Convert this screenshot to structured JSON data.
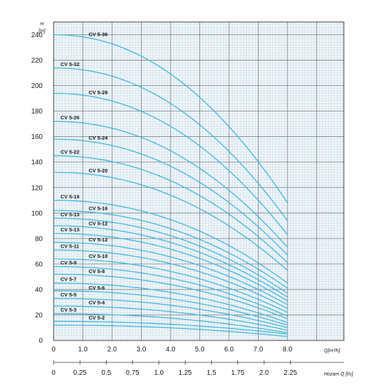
{
  "chart_data": {
    "type": "line",
    "title": "",
    "ylabel": "H",
    "ylabel_unit": "[m]",
    "xlabel": "Q[m³/h]",
    "x2label": "Hozam Q [l/s]",
    "xlim": [
      0,
      10.5
    ],
    "ylim": [
      0,
      250
    ],
    "x_ticks": [
      "0",
      "1.0",
      "2.0",
      "3.0",
      "4.0",
      "5.0",
      "6.0",
      "7.0",
      "8.0"
    ],
    "x2_ticks": [
      "0",
      "0.25",
      "0.5",
      "0.75",
      "1.0",
      "1.25",
      "1.5",
      "1.75",
      "2.0",
      "2.25"
    ],
    "y_ticks": [
      "0",
      "20",
      "40",
      "60",
      "80",
      "100",
      "120",
      "140",
      "160",
      "180",
      "200",
      "220",
      "240"
    ],
    "grid": true,
    "line_color": "#3bb4dc",
    "series": [
      {
        "label_side": "left",
        "h0": 12,
        "h8": 3
      },
      {
        "name": "CV 5-2",
        "label_side": "right",
        "h0": 15,
        "h8": 5
      },
      {
        "name": "CV 5-3",
        "label_side": "left",
        "h0": 21,
        "h8": 6
      },
      {
        "name": "CV 5-4",
        "label_side": "right",
        "h0": 27,
        "h8": 8
      },
      {
        "name": "CV 5-5",
        "label_side": "left",
        "h0": 33,
        "h8": 10
      },
      {
        "name": "CV 5-6",
        "label_side": "right",
        "h0": 39,
        "h8": 12
      },
      {
        "name": "CV 5-7",
        "label_side": "left",
        "h0": 45,
        "h8": 14
      },
      {
        "name": "CV 5-8",
        "label_side": "right",
        "h0": 52,
        "h8": 17
      },
      {
        "name": "CV 5-9",
        "label_side": "left",
        "h0": 58,
        "h8": 19
      },
      {
        "name": "CV 5-10",
        "label_side": "right",
        "h0": 64,
        "h8": 22
      },
      {
        "name": "CV 5-11",
        "label_side": "left",
        "h0": 71,
        "h8": 25
      },
      {
        "name": "CV 5-12",
        "label_side": "right",
        "h0": 77,
        "h8": 28
      },
      {
        "name": "CV 5-13",
        "label_side": "left",
        "h0": 84,
        "h8": 31
      },
      {
        "name": "CV 5-12",
        "label_side": "right",
        "h0": 90,
        "h8": 34
      },
      {
        "name": "CV 5-13",
        "label_side": "left",
        "h0": 96,
        "h8": 37
      },
      {
        "name": "CV 5-16",
        "label_side": "right",
        "h0": 102,
        "h8": 41
      },
      {
        "name": "CV 5-18",
        "label_side": "left",
        "h0": 110,
        "h8": 45
      },
      {
        "name": "CV 5-20",
        "label_side": "right",
        "h0": 132,
        "h8": 55
      },
      {
        "name": "CV 5-22",
        "label_side": "left",
        "h0": 145,
        "h8": 61
      },
      {
        "name": "CV 5-24",
        "label_side": "right",
        "h0": 158,
        "h8": 67
      },
      {
        "name": "CV 5-26",
        "label_side": "left",
        "h0": 172,
        "h8": 73
      },
      {
        "name": "CV 5-29",
        "label_side": "right",
        "h0": 194,
        "h8": 83
      },
      {
        "name": "CV 5-32",
        "label_side": "left",
        "h0": 214,
        "h8": 94
      },
      {
        "name": "CV 5-36",
        "label_side": "right",
        "h0": 240,
        "h8": 108
      }
    ]
  }
}
